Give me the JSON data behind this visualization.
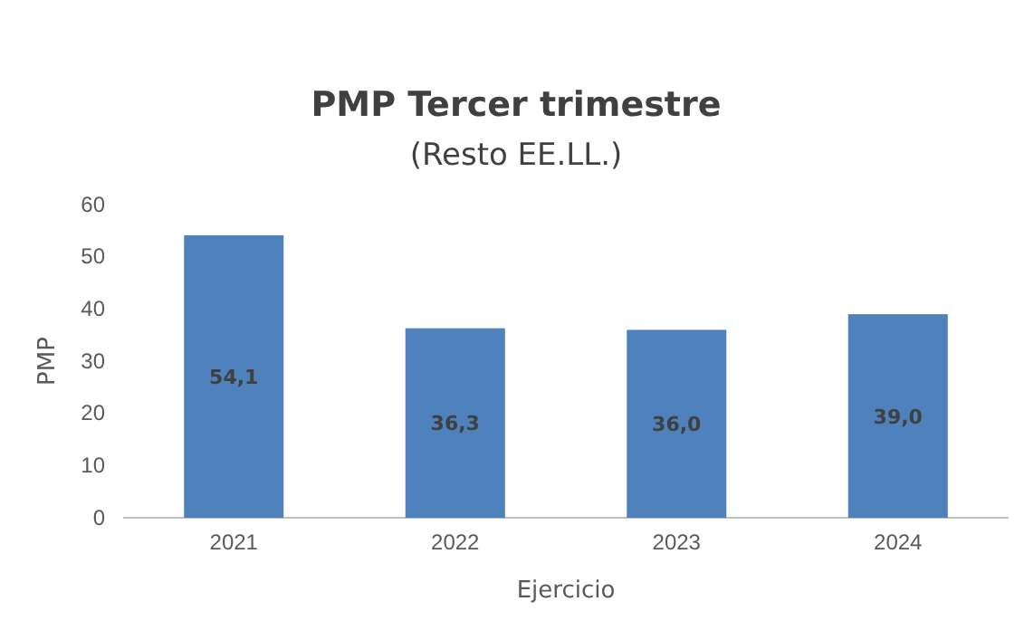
{
  "chart_data": {
    "type": "bar",
    "title": "PMP Tercer trimestre",
    "subtitle": "(Resto EE.LL.)",
    "xlabel": "Ejercicio",
    "ylabel": "PMP",
    "categories": [
      "2021",
      "2022",
      "2023",
      "2024"
    ],
    "values": [
      54.1,
      36.3,
      36.0,
      39.0
    ],
    "value_labels": [
      "54,1",
      "36,3",
      "36,0",
      "39,0"
    ],
    "color": "#4f81bd",
    "ylim": [
      0,
      60
    ],
    "yticks": [
      0,
      10,
      20,
      30,
      40,
      50,
      60
    ],
    "grid": false,
    "legend": false
  }
}
